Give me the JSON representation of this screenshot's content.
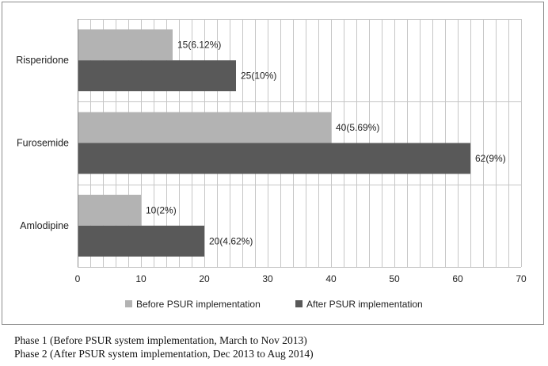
{
  "chart_data": {
    "type": "bar",
    "orientation": "horizontal",
    "categories": [
      "Risperidone",
      "Furosemide",
      "Amlodipine"
    ],
    "series": [
      {
        "name": "Before PSUR implementation",
        "values": [
          15,
          40,
          10
        ],
        "labels": [
          "15(6.12%)",
          "40(5.69%)",
          "10(2%)"
        ],
        "color": "#b3b3b3"
      },
      {
        "name": "After PSUR implementation",
        "values": [
          25,
          62,
          20
        ],
        "labels": [
          "25(10%)",
          "62(9%)",
          "20(4.62%)"
        ],
        "color": "#595959"
      }
    ],
    "xlim": [
      0,
      70
    ],
    "xticks": [
      0,
      10,
      20,
      30,
      40,
      50,
      60,
      70
    ],
    "minor_grid_step": 2,
    "grid": true,
    "legend_position": "bottom",
    "title": "",
    "xlabel": "",
    "ylabel": ""
  },
  "caption": {
    "line1": "Phase 1 (Before PSUR system implementation, March to Nov 2013)",
    "line2": "Phase 2 (After PSUR system implementation, Dec 2013 to Aug 2014)"
  }
}
